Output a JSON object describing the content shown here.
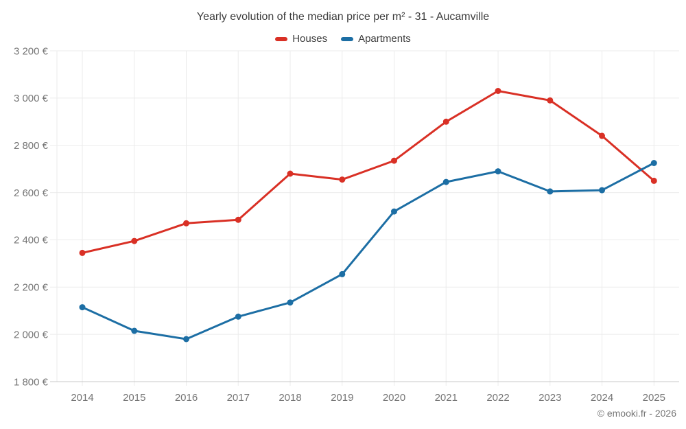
{
  "title": "Yearly evolution of the median price per m² - 31 - Aucamville",
  "footer": "© emooki.fr - 2026",
  "colors": {
    "houses": "#d93025",
    "apartments": "#1c6ea4",
    "grid": "#ebebeb",
    "axis": "#c8c8c8",
    "tick_text": "#757575",
    "title_text": "#3d3d3d"
  },
  "chart_data": {
    "type": "line",
    "title": "Yearly evolution of the median price per m² - 31 - Aucamville",
    "x": [
      "2014",
      "2015",
      "2016",
      "2017",
      "2018",
      "2019",
      "2020",
      "2021",
      "2022",
      "2023",
      "2024",
      "2025"
    ],
    "series": [
      {
        "name": "Houses",
        "color": "#d93025",
        "values": [
          2345,
          2395,
          2470,
          2485,
          2680,
          2655,
          2735,
          2900,
          3030,
          2990,
          2840,
          2650
        ]
      },
      {
        "name": "Apartments",
        "color": "#1c6ea4",
        "values": [
          2115,
          2015,
          1980,
          2075,
          2135,
          2255,
          2520,
          2645,
          2690,
          2605,
          2610,
          2725
        ]
      }
    ],
    "ylabel": "",
    "xlabel": "",
    "ylim": [
      1800,
      3200
    ],
    "yticks": [
      {
        "value": 1800,
        "label": "1 800 €"
      },
      {
        "value": 2000,
        "label": "2 000 €"
      },
      {
        "value": 2200,
        "label": "2 200 €"
      },
      {
        "value": 2400,
        "label": "2 400 €"
      },
      {
        "value": 2600,
        "label": "2 600 €"
      },
      {
        "value": 2800,
        "label": "2 800 €"
      },
      {
        "value": 3000,
        "label": "3 000 €"
      },
      {
        "value": 3200,
        "label": "3 200 €"
      }
    ],
    "grid": true,
    "legend_position": "top"
  }
}
